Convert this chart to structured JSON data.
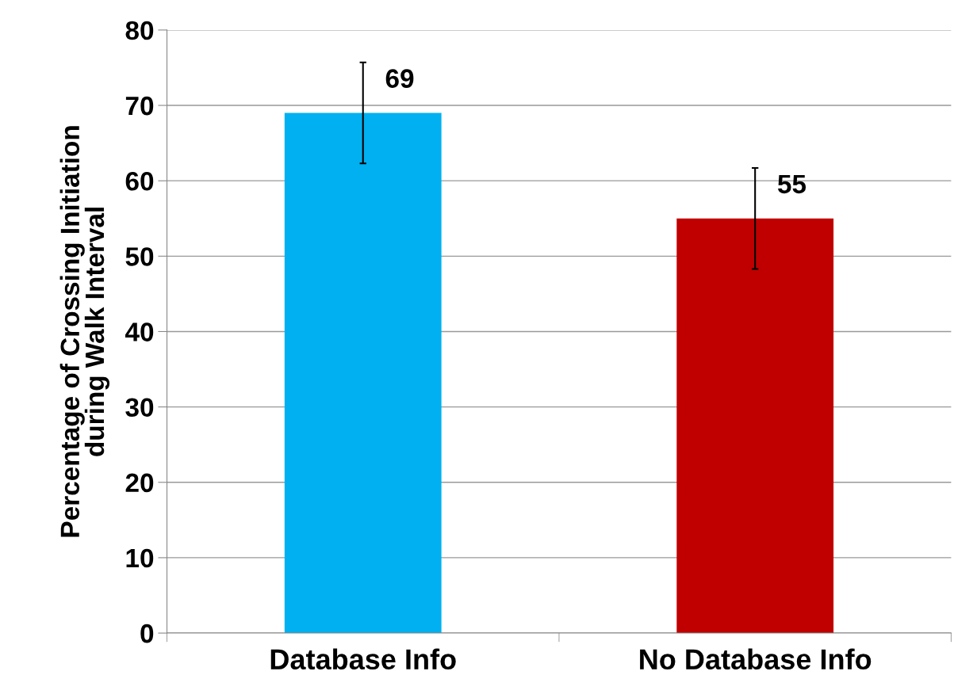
{
  "chart_data": {
    "type": "bar",
    "ylabel": "Percentage of Crossing Initiation\nduring Walk Interval",
    "categories": [
      "Database Info",
      "No Database Info"
    ],
    "values": [
      69,
      55
    ],
    "colors": [
      "#00b0f0",
      "#c00000"
    ],
    "errors": [
      6.7,
      6.7
    ],
    "data_labels": true,
    "ylim": [
      0,
      80
    ],
    "yticks": [
      0,
      10,
      20,
      30,
      40,
      50,
      60,
      70,
      80
    ],
    "grid": "y"
  }
}
